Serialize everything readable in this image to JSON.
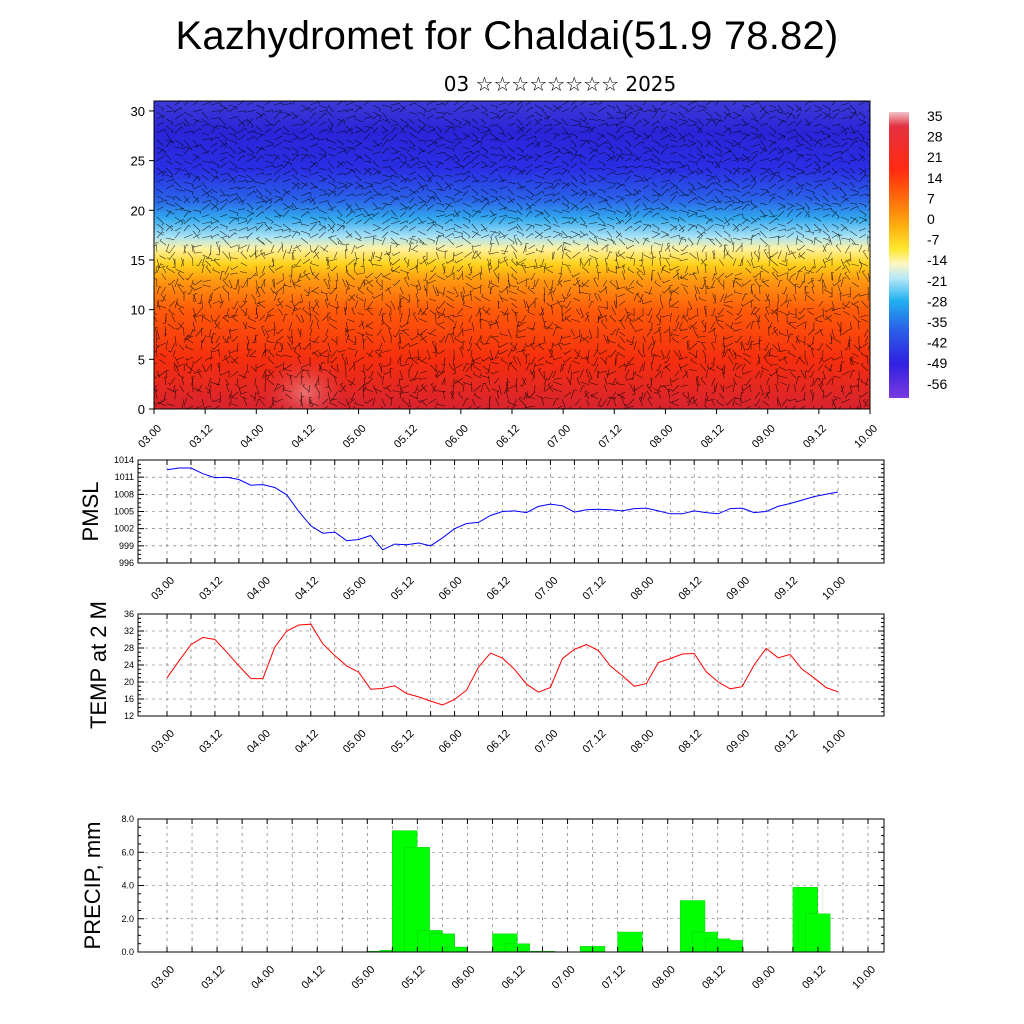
{
  "header": {
    "title": "Kazhydromet for Chaldai(51.9 78.82)",
    "subtitle": "03 ☆☆☆☆☆☆☆☆ 2025"
  },
  "time_ticks": [
    "03.00",
    "03.12",
    "04.00",
    "04.12",
    "05.00",
    "05.12",
    "06.00",
    "06.12",
    "07.00",
    "07.12",
    "08.00",
    "08.12",
    "09.00",
    "09.12",
    "10.00"
  ],
  "chart_data": [
    {
      "type": "heatmap",
      "name": "cross_section",
      "x_ticks": [
        "03.00",
        "03.12",
        "04.00",
        "04.12",
        "05.00",
        "05.12",
        "06.00",
        "06.12",
        "07.00",
        "07.12",
        "08.00",
        "08.12",
        "09.00",
        "09.12",
        "10.00"
      ],
      "y_ticks": [
        "0",
        "5",
        "10",
        "15",
        "20",
        "25",
        "30"
      ],
      "ylim": [
        0,
        31
      ],
      "colorbar_labels": [
        "35",
        "28",
        "21",
        "14",
        "7",
        "0",
        "-7",
        "-14",
        "-21",
        "-28",
        "-35",
        "-42",
        "-49",
        "-56"
      ],
      "colorbar_range": [
        -63,
        38
      ],
      "wind_barbs": true
    },
    {
      "type": "line",
      "name": "PMSL",
      "ylabel": "PMSL",
      "ylim": [
        996,
        1014
      ],
      "y_ticks": [
        "996",
        "999",
        "1002",
        "1005",
        "1008",
        "1011",
        "1014"
      ],
      "x_ticks": [
        "03.00",
        "03.12",
        "04.00",
        "04.12",
        "05.00",
        "05.12",
        "06.00",
        "06.12",
        "07.00",
        "07.12",
        "08.00",
        "08.12",
        "09.00",
        "09.12",
        "10.00"
      ],
      "color": "#0000ff",
      "x": [
        0,
        3,
        6,
        9,
        12,
        15,
        18,
        21,
        24,
        27,
        30,
        33,
        36,
        39,
        42,
        45,
        48,
        51,
        54,
        57,
        60,
        63,
        66,
        69,
        72,
        75,
        78,
        81,
        84,
        87,
        90,
        93,
        96,
        99,
        102,
        105,
        108,
        111,
        114,
        117,
        120,
        123,
        126,
        129,
        132,
        135,
        138,
        141,
        144,
        147,
        150,
        153,
        156,
        159,
        162,
        165,
        168
      ],
      "values": [
        1012.3,
        1012.6,
        1012.6,
        1011.6,
        1010.9,
        1011.0,
        1010.6,
        1009.6,
        1009.7,
        1009.2,
        1007.9,
        1005.0,
        1002.5,
        1001.2,
        1001.4,
        999.9,
        1000.1,
        1000.8,
        998.3,
        999.3,
        999.2,
        999.5,
        999.0,
        1000.4,
        1002.0,
        1002.9,
        1003.1,
        1004.3,
        1005.0,
        1005.1,
        1004.8,
        1005.9,
        1006.3,
        1006.0,
        1004.9,
        1005.3,
        1005.4,
        1005.3,
        1005.1,
        1005.5,
        1005.6,
        1005.1,
        1004.6,
        1004.6,
        1005.1,
        1004.8,
        1004.6,
        1005.5,
        1005.6,
        1004.8,
        1005.0,
        1005.9,
        1006.4,
        1007.0,
        1007.6,
        1008.0,
        1008.4
      ]
    },
    {
      "type": "line",
      "name": "TEMP at 2 M",
      "ylabel": "TEMP at 2 M",
      "ylim": [
        12,
        36
      ],
      "y_ticks": [
        "12",
        "16",
        "20",
        "24",
        "28",
        "32",
        "36"
      ],
      "x_ticks": [
        "03.00",
        "03.12",
        "04.00",
        "04.12",
        "05.00",
        "05.12",
        "06.00",
        "06.12",
        "07.00",
        "07.12",
        "08.00",
        "08.12",
        "09.00",
        "09.12",
        "10.00"
      ],
      "color": "#ff0000",
      "x": [
        0,
        3,
        6,
        9,
        12,
        15,
        18,
        21,
        24,
        27,
        30,
        33,
        36,
        39,
        42,
        45,
        48,
        51,
        54,
        57,
        60,
        63,
        66,
        69,
        72,
        75,
        78,
        81,
        84,
        87,
        90,
        93,
        96,
        99,
        102,
        105,
        108,
        111,
        114,
        117,
        120,
        123,
        126,
        129,
        132,
        135,
        138,
        141,
        144,
        147,
        150,
        153,
        156,
        159,
        162,
        165,
        168
      ],
      "values": [
        21.0,
        25.0,
        28.8,
        30.5,
        30.0,
        27.0,
        23.8,
        20.8,
        20.8,
        28.2,
        32.0,
        33.4,
        33.6,
        29.0,
        26.2,
        23.8,
        22.3,
        18.3,
        18.5,
        19.1,
        17.3,
        16.5,
        15.5,
        14.6,
        15.9,
        18.1,
        23.5,
        26.8,
        25.6,
        23.0,
        19.5,
        17.6,
        18.7,
        25.5,
        27.7,
        28.8,
        27.4,
        23.8,
        21.5,
        19.0,
        19.6,
        24.6,
        25.5,
        26.6,
        26.7,
        22.4,
        20.0,
        18.4,
        18.9,
        24.0,
        27.9,
        25.7,
        26.5,
        23.0,
        21.0,
        18.7,
        17.7
      ]
    },
    {
      "type": "bar",
      "name": "PRECIP",
      "ylabel": "PRECIP, mm",
      "ylim": [
        0,
        8
      ],
      "y_ticks": [
        "0.0",
        "2.0",
        "4.0",
        "6.0",
        "8.0"
      ],
      "x_ticks": [
        "03.00",
        "03.12",
        "04.00",
        "04.12",
        "05.00",
        "05.12",
        "06.00",
        "06.12",
        "07.00",
        "07.12",
        "08.00",
        "08.12",
        "09.00",
        "09.12",
        "10.00"
      ],
      "color": "#00ff00",
      "x": [
        0,
        3,
        6,
        9,
        12,
        15,
        18,
        21,
        24,
        27,
        30,
        33,
        36,
        39,
        42,
        45,
        48,
        51,
        54,
        57,
        60,
        63,
        66,
        69,
        72,
        75,
        78,
        81,
        84,
        87,
        90,
        93,
        96,
        99,
        102,
        105,
        108,
        111,
        114,
        117,
        120,
        123,
        126,
        129,
        132,
        135,
        138,
        141,
        144,
        147,
        150,
        153,
        156,
        159,
        162,
        165
      ],
      "values": [
        0,
        0,
        0,
        0,
        0,
        0,
        0,
        0,
        0,
        0,
        0,
        0,
        0,
        0,
        0,
        0,
        0.05,
        0.1,
        7.3,
        6.3,
        1.3,
        1.1,
        0.3,
        0,
        0,
        0,
        1.1,
        0.5,
        0.05,
        0.05,
        0,
        0,
        0,
        0.35,
        0,
        0,
        1.2,
        0,
        0,
        0,
        0,
        3.1,
        1.2,
        0.8,
        0.7,
        0,
        0,
        0,
        0,
        0,
        3.9,
        2.3,
        0,
        0,
        0,
        0
      ]
    }
  ]
}
